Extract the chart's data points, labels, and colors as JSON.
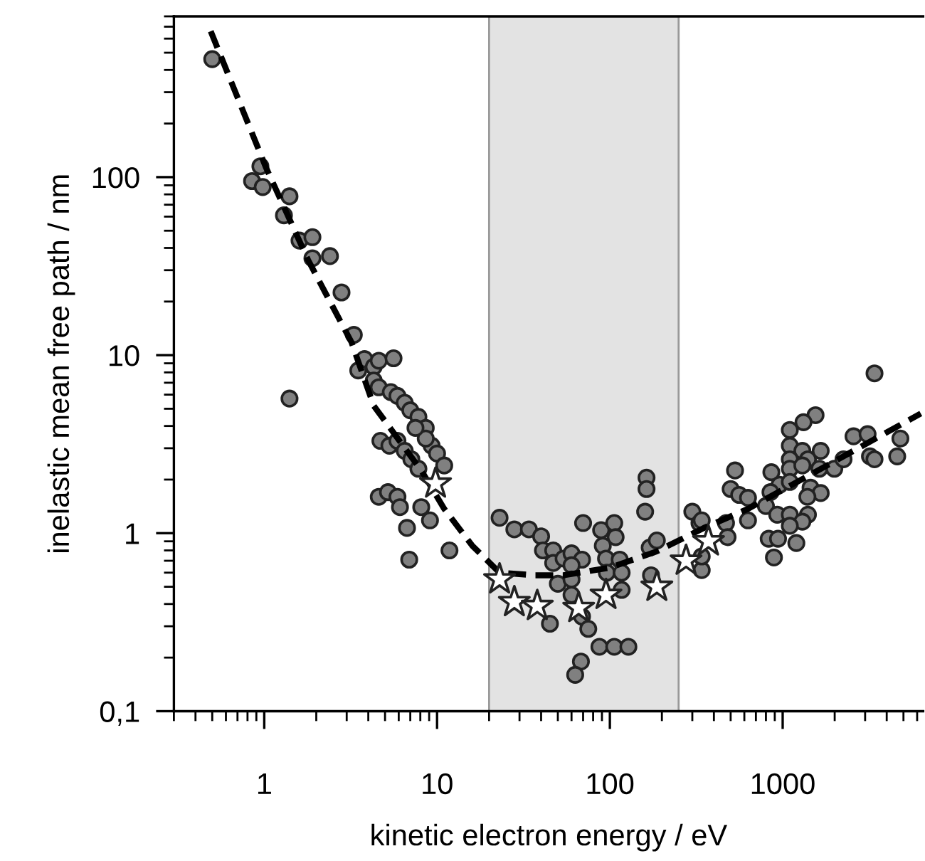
{
  "chart_data": {
    "type": "scatter",
    "xlabel": "kinetic electron energy / eV",
    "ylabel": "inelastic mean free path / nm",
    "log": "xy",
    "xlim": [
      0.3,
      6500
    ],
    "ylim": [
      0.1,
      800
    ],
    "xticks": [
      1,
      10,
      100,
      1000
    ],
    "yticks": [
      {
        "value": 0.1,
        "label": "0,1"
      },
      1,
      10,
      100
    ],
    "grid": false,
    "bands": [
      {
        "axis": "x",
        "from": 20,
        "to": 250,
        "color": "#e3e3e3"
      }
    ],
    "series": [
      {
        "marker": "circle",
        "color": "#808080",
        "x": [
          0.5,
          0.85,
          0.95,
          0.98,
          1.4,
          1.3,
          1.6,
          1.9,
          1.9,
          2.4,
          2.8,
          3.3,
          1.4,
          3.5,
          3.8,
          4.3,
          4.6,
          5.6,
          4.3,
          4.6,
          5.4,
          5.9,
          6.5,
          7.0,
          7.8,
          8.6,
          9.3,
          10,
          11,
          8.6,
          7.5,
          4.7,
          5.3,
          5.9,
          6.5,
          7.1,
          7.8,
          4.6,
          5.2,
          5.9,
          6.1,
          6.7,
          8.1,
          9.1,
          6.9,
          11.8,
          23,
          28,
          34,
          40,
          41,
          47,
          47,
          50,
          45,
          54,
          60,
          69,
          60,
          60,
          60,
          69,
          75,
          70,
          89,
          106,
          108,
          91,
          95,
          114,
          96,
          117,
          117,
          87,
          106,
          128,
          68,
          63,
          163,
          163,
          160,
          170,
          187,
          173,
          300,
          330,
          470,
          480,
          340,
          530,
          500,
          560,
          630,
          340,
          340,
          630,
          3400,
          1550,
          1320,
          1100,
          1100,
          1300,
          1400,
          1660,
          1100,
          1100,
          1300,
          1630,
          1990,
          2250,
          2570,
          3100,
          3200,
          3400,
          4800,
          4600,
          860,
          960,
          1100,
          1450,
          1660,
          850,
          800,
          930,
          1100,
          1400,
          1300,
          1100,
          1390,
          830,
          940,
          1200,
          890
        ],
        "values": [
          460,
          95,
          115,
          88,
          78,
          61,
          44,
          46,
          35,
          36,
          22.5,
          13,
          5.7,
          8.2,
          9.5,
          8.6,
          9.3,
          9.6,
          7.2,
          6.6,
          6.2,
          5.9,
          5.4,
          4.9,
          4.5,
          3.9,
          3.1,
          2.8,
          2.4,
          3.4,
          3.9,
          3.3,
          3.1,
          3.3,
          2.9,
          2.6,
          2.3,
          1.6,
          1.7,
          1.6,
          1.4,
          1.07,
          1.4,
          1.18,
          0.71,
          0.8,
          1.22,
          1.05,
          1.05,
          0.96,
          0.8,
          0.8,
          0.68,
          0.52,
          0.31,
          0.72,
          0.77,
          0.71,
          0.66,
          0.55,
          0.45,
          0.34,
          0.29,
          1.14,
          1.04,
          1.14,
          0.95,
          0.85,
          0.72,
          0.71,
          0.6,
          0.6,
          0.48,
          0.23,
          0.23,
          0.23,
          0.19,
          0.16,
          2.05,
          1.77,
          1.32,
          0.83,
          0.91,
          0.58,
          1.32,
          1.14,
          1.14,
          0.95,
          0.62,
          2.25,
          1.77,
          1.64,
          1.18,
          1.18,
          0.74,
          1.58,
          7.9,
          4.6,
          4.2,
          3.8,
          3.1,
          2.9,
          2.6,
          2.9,
          2.6,
          2.3,
          2.4,
          2.3,
          2.3,
          2.6,
          3.5,
          3.6,
          2.7,
          2.6,
          3.4,
          2.7,
          2.2,
          1.87,
          1.94,
          1.8,
          1.68,
          1.7,
          1.42,
          1.27,
          1.27,
          1.27,
          1.16,
          1.1,
          1.6,
          0.93,
          0.93,
          0.88,
          0.73
        ]
      },
      {
        "type": "line",
        "line_style": "dashed",
        "marker": "none",
        "color": "#000000",
        "x": [
          0.49,
          1.02,
          1.8,
          3.2,
          4.3,
          8.1,
          11,
          16,
          23,
          37,
          54,
          100,
          187,
          350,
          630,
          1600,
          6300
        ],
        "values": [
          660,
          114,
          34,
          11.8,
          5.2,
          2.25,
          1.37,
          0.85,
          0.6,
          0.58,
          0.58,
          0.64,
          0.79,
          1.07,
          1.37,
          2.25,
          4.7
        ]
      },
      {
        "marker": "star",
        "color": "#ffffff",
        "x": [
          9.8,
          23,
          28,
          38,
          66,
          95,
          187,
          276,
          372
        ],
        "values": [
          1.9,
          0.55,
          0.41,
          0.39,
          0.38,
          0.45,
          0.5,
          0.7,
          0.9
        ]
      }
    ]
  }
}
